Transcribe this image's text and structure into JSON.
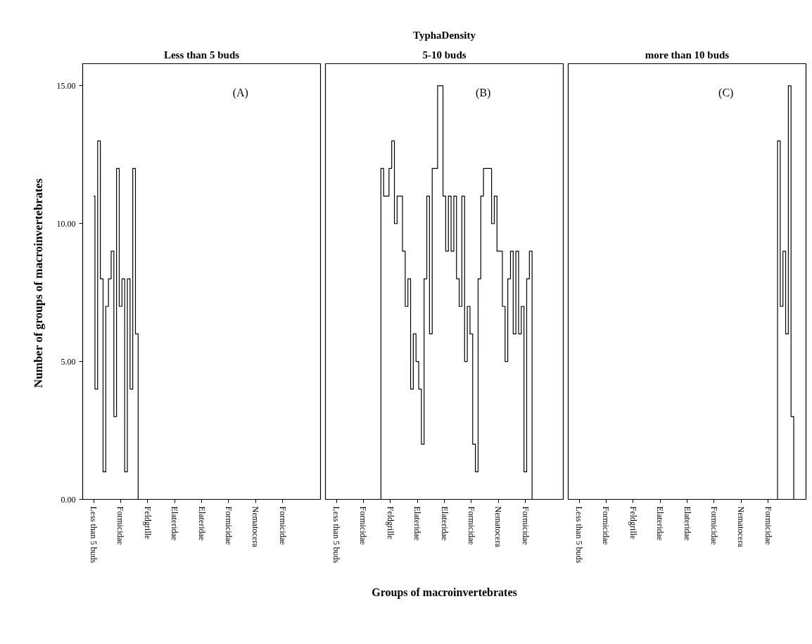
{
  "chart_data": [
    {
      "type": "step",
      "title": "Less than 5 buds",
      "ylabel": "Number of  groups of macroinvertebrates",
      "annotations": [
        "(A)"
      ],
      "categories": [
        "Less than 5 buds",
        null,
        null,
        null,
        null,
        null,
        null,
        null,
        null,
        null,
        "Formicidae",
        null,
        null,
        null,
        null,
        null,
        null,
        null,
        null,
        null,
        "Feldgrille",
        null,
        null,
        null,
        null,
        null,
        null,
        null,
        null,
        null,
        "Elateridae",
        null,
        null,
        null,
        null,
        null,
        null,
        null,
        null,
        null,
        "Elateridae",
        null,
        null,
        null,
        null,
        null,
        null,
        null,
        null,
        null,
        "Formicidae",
        null,
        null,
        null,
        null,
        null,
        null,
        null,
        null,
        null,
        "Nematocera",
        null,
        null,
        null,
        null,
        null,
        null,
        null,
        null,
        null,
        "Formicidae",
        null,
        null,
        null,
        null,
        null,
        null,
        null,
        null,
        null,
        null
      ],
      "series": [
        {
          "color": "#000000",
          "values": [
            11,
            4,
            13,
            8,
            1,
            7,
            8,
            9,
            3,
            12,
            7,
            8,
            1,
            8,
            4,
            12,
            6,
            0,
            0,
            0,
            0,
            0,
            0,
            0,
            0,
            0,
            0,
            0,
            0,
            0,
            0,
            0,
            0,
            0,
            0,
            0,
            0,
            0,
            0,
            0,
            0,
            0,
            0,
            0,
            0,
            0,
            0,
            0,
            0,
            0,
            0,
            0,
            0,
            0,
            0,
            0,
            0,
            0,
            0,
            0,
            0,
            0,
            0,
            0,
            0,
            0,
            0,
            0,
            0,
            0,
            0,
            0,
            0,
            0,
            0,
            0,
            0,
            0,
            0,
            0,
            0
          ]
        }
      ],
      "ylim": [
        0,
        15.8
      ],
      "yticks": [
        {
          "value": 0,
          "label": "0.00"
        },
        {
          "value": 5,
          "label": "5.00"
        },
        {
          "value": 10,
          "label": "10.00"
        },
        {
          "value": 15,
          "label": "15.00"
        }
      ]
    },
    {
      "type": "step",
      "title": "5-10 buds",
      "subtitle": "TyphaDensity",
      "xlabel": "Groups of macroinvertebrates",
      "annotations": [
        "(B)"
      ],
      "tick_labels": "x",
      "categories": [
        "Less than 5 buds",
        null,
        null,
        null,
        null,
        null,
        null,
        null,
        null,
        null,
        "Formicidae",
        null,
        null,
        null,
        null,
        null,
        null,
        null,
        null,
        null,
        "Feldgrille",
        null,
        null,
        null,
        null,
        null,
        null,
        null,
        null,
        null,
        "Elateridae",
        null,
        null,
        null,
        null,
        null,
        null,
        null,
        null,
        null,
        "Elateridae",
        null,
        null,
        null,
        null,
        null,
        null,
        null,
        null,
        null,
        "Formicidae",
        null,
        null,
        null,
        null,
        null,
        null,
        null,
        null,
        null,
        "Nematocera",
        null,
        null,
        null,
        null,
        null,
        null,
        null,
        null,
        null,
        "Formicidae",
        null,
        null,
        null,
        null,
        null,
        null,
        null,
        null,
        null,
        null
      ],
      "series": [
        {
          "color": "#000000",
          "values": [
            0,
            0,
            0,
            0,
            0,
            0,
            0,
            0,
            0,
            0,
            0,
            0,
            0,
            0,
            0,
            0,
            0,
            12,
            11,
            11,
            12,
            13,
            10,
            11,
            11,
            9,
            7,
            8,
            4,
            6,
            5,
            4,
            2,
            8,
            11,
            6,
            12,
            12,
            15,
            15,
            11,
            9,
            11,
            9,
            11,
            8,
            7,
            11,
            5,
            7,
            6,
            2,
            1,
            8,
            11,
            12,
            12,
            12,
            10,
            11,
            9,
            9,
            7,
            5,
            8,
            9,
            6,
            9,
            6,
            7,
            1,
            8,
            9,
            0,
            0,
            0,
            0,
            0,
            0,
            0,
            0
          ]
        }
      ],
      "ylim": [
        0,
        15.8
      ]
    },
    {
      "type": "step",
      "title": "more than 10 buds",
      "annotations": [
        "(C)"
      ],
      "tick_labels": "x",
      "categories": [
        "Less than 5 buds",
        null,
        null,
        null,
        null,
        null,
        null,
        null,
        null,
        null,
        "Formicidae",
        null,
        null,
        null,
        null,
        null,
        null,
        null,
        null,
        null,
        "Feldgrille",
        null,
        null,
        null,
        null,
        null,
        null,
        null,
        null,
        null,
        "Elateridae",
        null,
        null,
        null,
        null,
        null,
        null,
        null,
        null,
        null,
        "Elateridae",
        null,
        null,
        null,
        null,
        null,
        null,
        null,
        null,
        null,
        "Formicidae",
        null,
        null,
        null,
        null,
        null,
        null,
        null,
        null,
        null,
        "Nematocera",
        null,
        null,
        null,
        null,
        null,
        null,
        null,
        null,
        null,
        "Formicidae",
        null,
        null,
        null,
        null,
        null,
        null,
        null,
        null,
        null,
        null
      ],
      "series": [
        {
          "color": "#000000",
          "values": [
            0,
            0,
            0,
            0,
            0,
            0,
            0,
            0,
            0,
            0,
            0,
            0,
            0,
            0,
            0,
            0,
            0,
            0,
            0,
            0,
            0,
            0,
            0,
            0,
            0,
            0,
            0,
            0,
            0,
            0,
            0,
            0,
            0,
            0,
            0,
            0,
            0,
            0,
            0,
            0,
            0,
            0,
            0,
            0,
            0,
            0,
            0,
            0,
            0,
            0,
            0,
            0,
            0,
            0,
            0,
            0,
            0,
            0,
            0,
            0,
            0,
            0,
            0,
            0,
            0,
            0,
            0,
            0,
            0,
            0,
            0,
            0,
            0,
            0,
            13,
            7,
            9,
            6,
            15,
            3,
            0
          ]
        }
      ],
      "ylim": [
        0,
        15.8
      ]
    }
  ]
}
